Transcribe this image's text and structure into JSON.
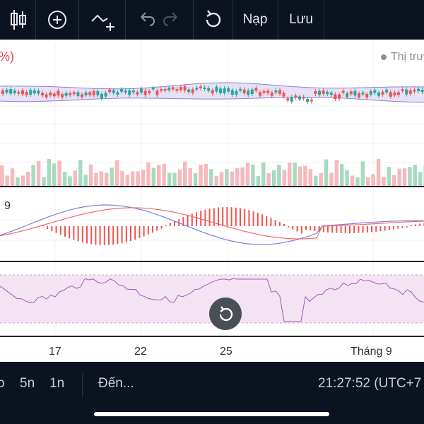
{
  "toolbar": {
    "load_label": "Nạp",
    "save_label": "Lưu",
    "icons": [
      "candles-icon",
      "add-circle-icon",
      "indicators-icon",
      "undo-icon",
      "redo-icon",
      "refresh-icon"
    ]
  },
  "legend": {
    "left_partial": "%)",
    "right_partial": "Thị trư"
  },
  "macd_label_partial": "9",
  "x_axis": [
    "17",
    "22",
    "25",
    "Tháng 9"
  ],
  "bottom_bar": {
    "interval_partial": "o",
    "interval_5n": "5n",
    "interval_1n": "1n",
    "goto_label": "Đến...",
    "clock": "21:27:52 (UTC+7"
  },
  "colors": {
    "up": "#26a69a",
    "down": "#ef5350",
    "vol_up": "#a6dbc1",
    "vol_down": "#f6b9bc",
    "bollinger_fill": "#e6e1f5",
    "macd_line": "#7b7fe0",
    "signal_line": "#ef6a6a",
    "rsi_line": "#a05bb4",
    "rsi_band": "#f3e3f3"
  }
}
